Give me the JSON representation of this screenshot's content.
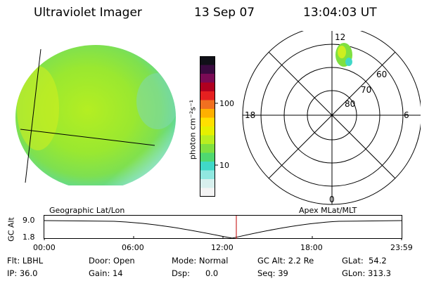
{
  "header": {
    "instrument": "Ultraviolet Imager",
    "date": "13 Sep 07",
    "time": "13:04:03 UT"
  },
  "colorbar": {
    "label": "photon cm⁻²s⁻¹",
    "ticks": [
      "100",
      "10"
    ],
    "colors": [
      "#101018",
      "#3a0a40",
      "#7a0a55",
      "#b00020",
      "#e52020",
      "#f07020",
      "#ffb000",
      "#ffe000",
      "#e6f000",
      "#b8ee20",
      "#7fe040",
      "#4fd870",
      "#40d8c8",
      "#90e8e0",
      "#d8f0ee",
      "#f4f4f4"
    ]
  },
  "polar": {
    "labels": [
      "12",
      "18",
      "6",
      "0",
      "60",
      "70",
      "80"
    ]
  },
  "timeline": {
    "ylabel": "GC Alt",
    "ytick_top": "9.0",
    "ytick_bottom": "1.8",
    "left_label": "Geographic Lat/Lon",
    "right_label": "Apex MLat/MLT",
    "xticks": [
      "00:00",
      "06:00",
      "12:00",
      "18:00",
      "23:59"
    ],
    "marker_color": "#c00000"
  },
  "info": {
    "flt": "Flt: LBHL",
    "ip": "IP: 36.0",
    "door": "Door: Open",
    "gain": "Gain: 14",
    "mode": "Mode: Normal",
    "dsp": "Dsp:      0.0",
    "gcalt": "GC Alt: 2.2 Re",
    "seq": "Seq: 39",
    "glat": "GLat:  54.2",
    "glon": "GLon: 313.3"
  }
}
